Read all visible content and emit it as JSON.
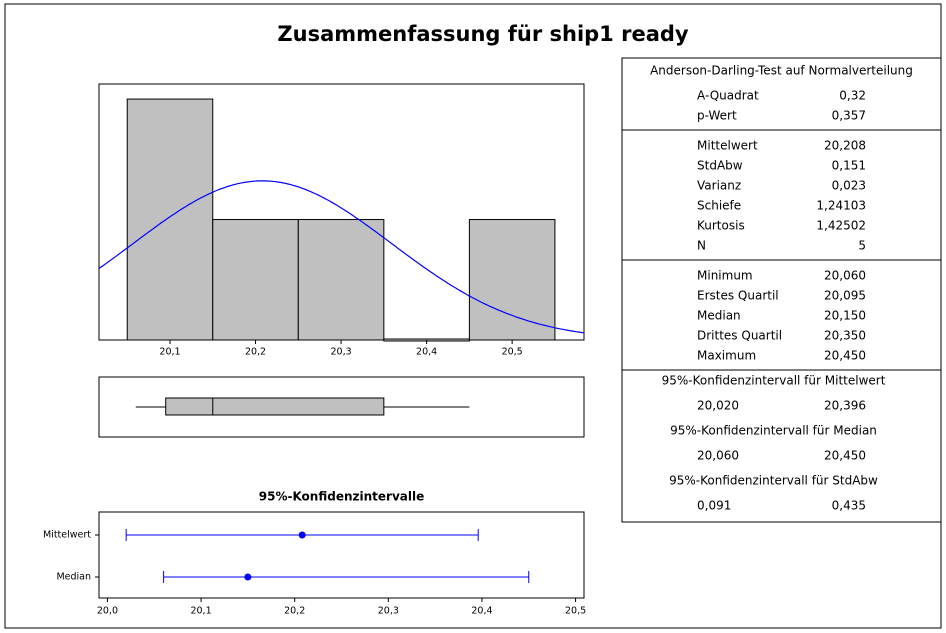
{
  "title": "Zusammenfassung für ship1 ready",
  "chart_data": [
    {
      "type": "histogram",
      "bins": [
        20.05,
        20.15,
        20.25,
        20.35,
        20.45,
        20.55
      ],
      "counts": [
        2,
        1,
        1,
        0,
        1
      ],
      "color": "#c0c0c0",
      "xlim": [
        20.017,
        20.584
      ],
      "ylim": [
        0,
        2.125
      ],
      "xticks": [
        {
          "value": 20.1,
          "label": "20,1"
        },
        {
          "value": 20.2,
          "label": "20,2"
        },
        {
          "value": 20.3,
          "label": "20,3"
        },
        {
          "value": 20.4,
          "label": "20,4"
        },
        {
          "value": 20.5,
          "label": "20,5"
        }
      ],
      "normal_curve": {
        "mean": 20.208,
        "sd": 0.151,
        "color": "#0000ff"
      }
    },
    {
      "type": "boxplot",
      "min": 20.06,
      "q1": 20.095,
      "median": 20.15,
      "q3": 20.35,
      "max": 20.45,
      "color": "#c0c0c0",
      "xlim": [
        20.017,
        20.584
      ]
    },
    {
      "type": "interval",
      "title": "95%-Konfidenzintervalle",
      "categories": [
        "Mittelwert",
        "Median"
      ],
      "estimates": [
        20.208,
        20.15
      ],
      "lower": [
        20.02,
        20.06
      ],
      "upper": [
        20.396,
        20.45
      ],
      "color": "#0000ff",
      "xlim": [
        19.991,
        20.509
      ],
      "xticks": [
        {
          "value": 20.0,
          "label": "20,0"
        },
        {
          "value": 20.1,
          "label": "20,1"
        },
        {
          "value": 20.2,
          "label": "20,2"
        },
        {
          "value": 20.3,
          "label": "20,3"
        },
        {
          "value": 20.4,
          "label": "20,4"
        },
        {
          "value": 20.5,
          "label": "20,5"
        }
      ]
    }
  ],
  "stats_table": {
    "header": "Anderson-Darling-Test auf Normalverteilung",
    "groups": [
      [
        [
          "A-Quadrat",
          "0,32"
        ],
        [
          "p-Wert",
          "0,357"
        ]
      ],
      [
        [
          "Mittelwert",
          "20,208"
        ],
        [
          "StdAbw",
          "0,151"
        ],
        [
          "Varianz",
          "0,023"
        ],
        [
          "Schiefe",
          "1,24103"
        ],
        [
          "Kurtosis",
          "1,42502"
        ],
        [
          "N",
          "5"
        ]
      ],
      [
        [
          "Minimum",
          "20,060"
        ],
        [
          "Erstes Quartil",
          "20,095"
        ],
        [
          "Median",
          "20,150"
        ],
        [
          "Drittes Quartil",
          "20,350"
        ],
        [
          "Maximum",
          "20,450"
        ]
      ]
    ],
    "intervals": [
      {
        "title": "95%-Konfidenzintervall für Mittelwert",
        "values": [
          "20,020",
          "20,396"
        ]
      },
      {
        "title": "95%-Konfidenzintervall für Median",
        "values": [
          "20,060",
          "20,450"
        ]
      },
      {
        "title": "95%-Konfidenzintervall für StdAbw",
        "values": [
          "0,091",
          "0,435"
        ]
      }
    ]
  }
}
